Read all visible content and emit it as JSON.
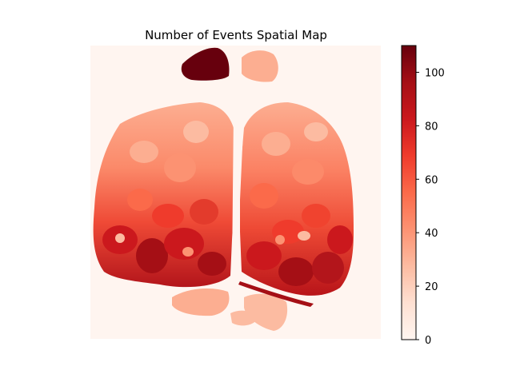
{
  "chart_data": {
    "type": "heatmap",
    "title": "Number of Events Spatial Map",
    "xlabel": "",
    "ylabel": "",
    "axes_visible": false,
    "colormap": "Reds",
    "colorbar": {
      "range": [
        0,
        110
      ],
      "ticks": [
        0,
        20,
        40,
        60,
        80,
        100
      ],
      "tick_labels": [
        "0",
        "20",
        "40",
        "60",
        "80",
        "100"
      ],
      "colors": [
        "#fff5f0",
        "#fee0d2",
        "#fcbba1",
        "#fc9272",
        "#fb6a4a",
        "#ef3b2c",
        "#cb181d",
        "#a50f15",
        "#67000d"
      ]
    },
    "background_value": 0,
    "regions": [
      {
        "name": "left-hemisphere-upper",
        "approx_value": 45
      },
      {
        "name": "left-hemisphere-lower",
        "approx_value": 75
      },
      {
        "name": "right-hemisphere-upper",
        "approx_value": 45
      },
      {
        "name": "right-hemisphere-lower",
        "approx_value": 75
      },
      {
        "name": "olfactory-bulb-left",
        "approx_value": 105
      },
      {
        "name": "olfactory-bulb-right",
        "approx_value": 30
      },
      {
        "name": "cerebellum",
        "approx_value": 35
      }
    ]
  }
}
